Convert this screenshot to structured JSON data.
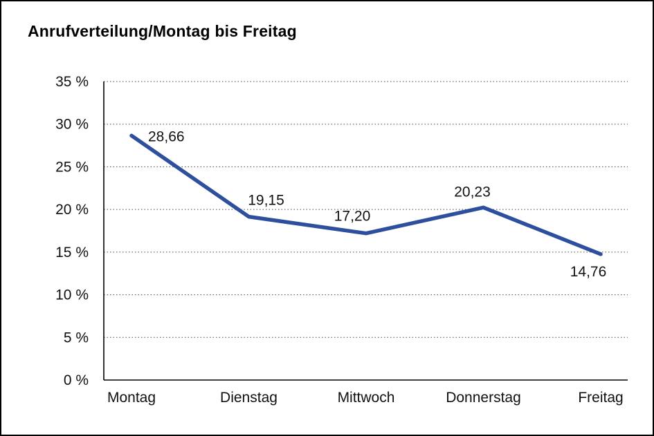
{
  "page": {
    "background_color": "#ffffff",
    "border_color": "#000000"
  },
  "chart_data": {
    "type": "line",
    "title": "Anrufverteilung/Montag bis Freitag",
    "categories": [
      "Montag",
      "Dienstag",
      "Mittwoch",
      "Donnerstag",
      "Freitag"
    ],
    "values": [
      28.66,
      19.15,
      17.2,
      20.23,
      14.76
    ],
    "value_labels": [
      "28,66",
      "19,15",
      "17,20",
      "20,23",
      "14,76"
    ],
    "y_ticks": [
      0,
      5,
      10,
      15,
      20,
      25,
      30,
      35
    ],
    "y_tick_labels": [
      "0 %",
      "5 %",
      "10 %",
      "15 %",
      "20 %",
      "25 %",
      "30 %",
      "35 %"
    ],
    "ylim": [
      0,
      35
    ],
    "xlabel": "",
    "ylabel": "",
    "grid": "horizontal-dotted",
    "legend": "none",
    "line_color": "#2e4f9e",
    "text_color": "#111111",
    "axis_color": "#000000"
  }
}
